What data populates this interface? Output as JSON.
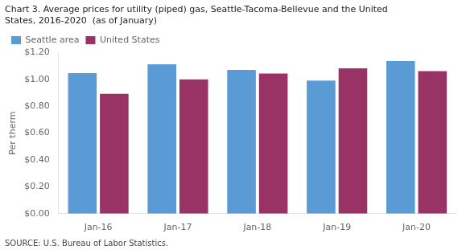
{
  "chart_data": {
    "type": "bar",
    "title": [
      "Chart 3. Average prices for utility (piped) gas, Seattle-Tacoma-Bellevue and the United",
      "States, 2016-2020  (as of January)"
    ],
    "ylabel": "Per therm",
    "annotations": [
      "SOURCE: U.S. Bureau of Labor Statistics."
    ],
    "categories": [
      "Jan-16",
      "Jan-17",
      "Jan-18",
      "Jan-19",
      "Jan-20"
    ],
    "series": [
      {
        "name": "Seattle area",
        "color": "#5B9BD5",
        "values": [
          1.046,
          1.113,
          1.071,
          0.992,
          1.137
        ]
      },
      {
        "name": "United States",
        "color": "#993366",
        "values": [
          0.893,
          1.001,
          1.044,
          1.082,
          1.062
        ]
      }
    ],
    "ylim": [
      0,
      1.2
    ],
    "yticks": [
      {
        "value": 0.0,
        "label": "$0.00"
      },
      {
        "value": 0.2,
        "label": "$0.20"
      },
      {
        "value": 0.4,
        "label": "$0.40"
      },
      {
        "value": 0.6,
        "label": "$0.60"
      },
      {
        "value": 0.8,
        "label": "$0.80"
      },
      {
        "value": 1.0,
        "label": "$1.00"
      },
      {
        "value": 1.2,
        "label": "$1.20"
      }
    ],
    "grid": false,
    "legend": "upper left"
  }
}
